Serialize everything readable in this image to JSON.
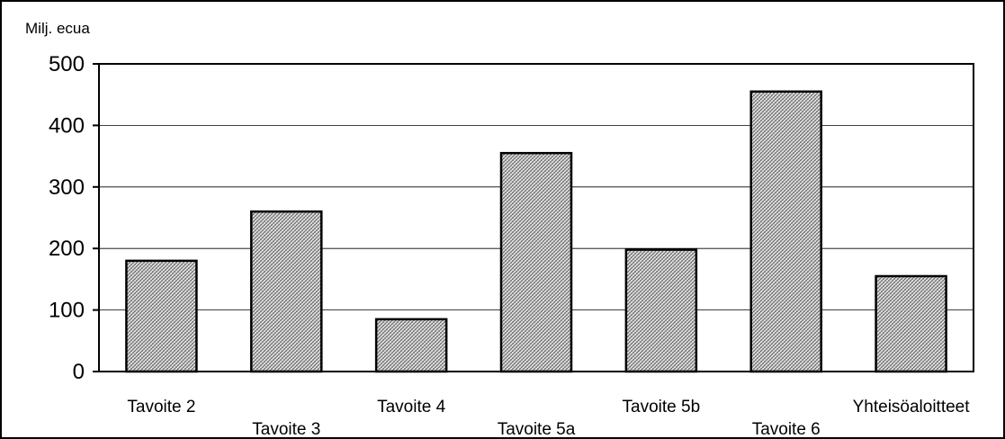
{
  "chart_data": {
    "type": "bar",
    "title": "",
    "xlabel": "",
    "ylabel": "Milj. ecua",
    "ylim": [
      0,
      500
    ],
    "yticks": [
      0,
      100,
      200,
      300,
      400,
      500
    ],
    "grid": true,
    "categories": [
      "Tavoite 2",
      "Tavoite 3",
      "Tavoite 4",
      "Tavoite 5a",
      "Tavoite 5b",
      "Tavoite 6",
      "Yhteisöaloitteet"
    ],
    "values": [
      180,
      260,
      85,
      355,
      198,
      455,
      155
    ],
    "colors": {
      "bar_fill": "#bdbdbd",
      "bar_stroke": "#000000",
      "grid": "#000000",
      "background": "#ffffff"
    }
  }
}
